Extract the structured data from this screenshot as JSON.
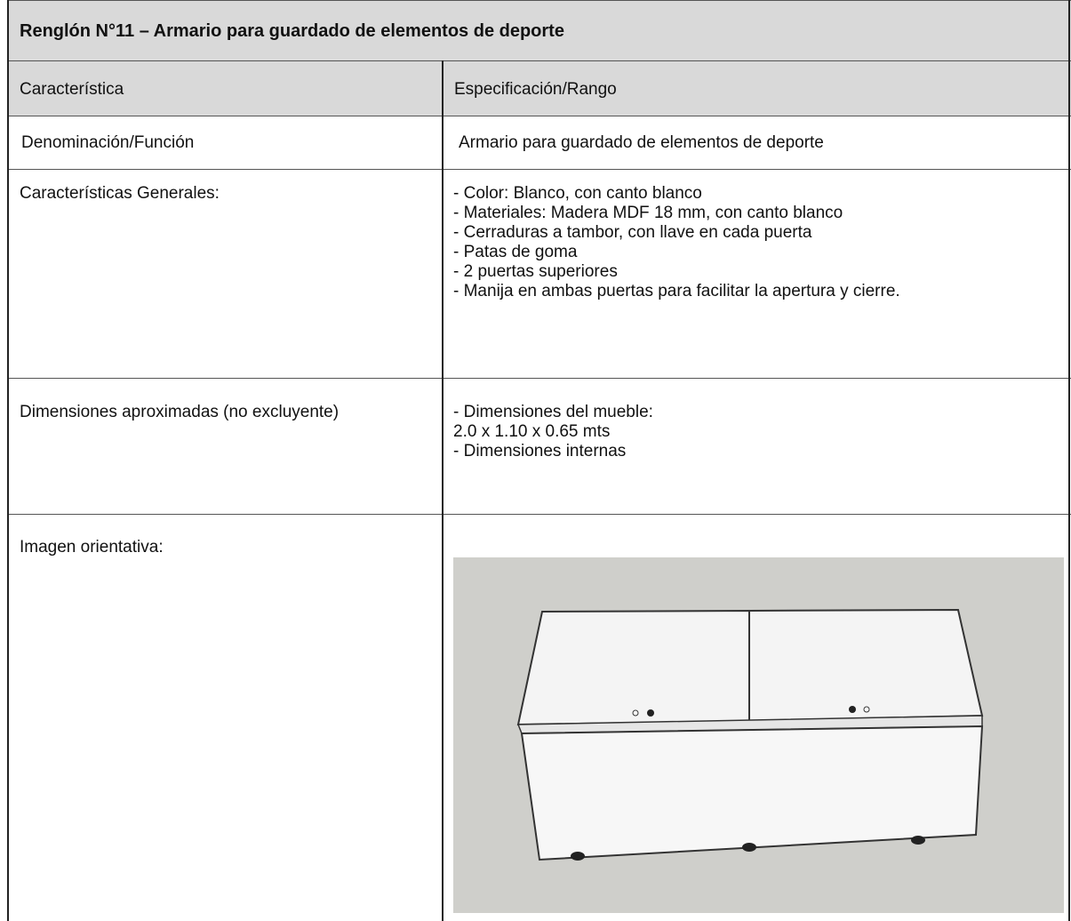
{
  "title": "Renglón N°11 – Armario para guardado de elementos de deporte",
  "header": [
    "Característica",
    "Especificación/Rango"
  ],
  "rows": [
    {
      "label": "Denominación/Función",
      "spec": [
        "Armario para guardado de elementos de deporte"
      ]
    },
    {
      "label": "Características Generales:",
      "spec": [
        "- Color: Blanco, con canto blanco",
        "- Materiales: Madera MDF 18 mm, con canto blanco",
        "- Cerraduras a tambor, con llave en cada puerta",
        "- Patas de goma",
        "- 2 puertas superiores",
        "- Manija en ambas puertas para facilitar la apertura y cierre."
      ]
    },
    {
      "label": "Dimensiones aproximadas (no excluyente)",
      "spec": [
        "- Dimensiones del mueble:",
        "2.0 x 1.10 x 0.65 mts",
        "- Dimensiones internas"
      ]
    },
    {
      "label": "Imagen orientativa:",
      "spec": []
    }
  ]
}
